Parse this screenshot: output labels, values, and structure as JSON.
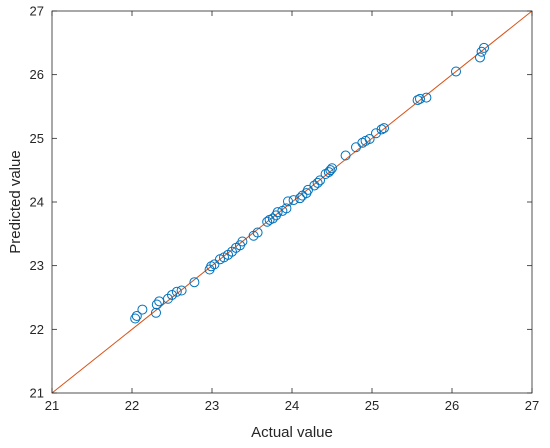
{
  "chart_data": {
    "type": "scatter",
    "title": "",
    "xlabel": "Actual value",
    "ylabel": "Predicted value",
    "xlim": [
      21,
      27
    ],
    "ylim": [
      21,
      27
    ],
    "x_ticks": [
      "21",
      "22",
      "23",
      "24",
      "25",
      "26",
      "27"
    ],
    "y_ticks": [
      "21",
      "22",
      "23",
      "24",
      "25",
      "26",
      "27"
    ],
    "grid": false,
    "legend": "none",
    "marker": "open-circle",
    "marker_color": "#0072BD",
    "reference_line": {
      "from": [
        21,
        21
      ],
      "to": [
        27,
        27
      ],
      "color": "#D95319"
    },
    "points": [
      [
        22.04,
        22.17
      ],
      [
        22.06,
        22.21
      ],
      [
        22.13,
        22.31
      ],
      [
        22.3,
        22.26
      ],
      [
        22.31,
        22.39
      ],
      [
        22.34,
        22.44
      ],
      [
        22.45,
        22.48
      ],
      [
        22.5,
        22.54
      ],
      [
        22.56,
        22.59
      ],
      [
        22.62,
        22.61
      ],
      [
        22.78,
        22.74
      ],
      [
        22.97,
        22.94
      ],
      [
        22.99,
        22.99
      ],
      [
        23.03,
        23.02
      ],
      [
        23.1,
        23.1
      ],
      [
        23.15,
        23.13
      ],
      [
        23.2,
        23.17
      ],
      [
        23.25,
        23.22
      ],
      [
        23.3,
        23.28
      ],
      [
        23.35,
        23.32
      ],
      [
        23.38,
        23.38
      ],
      [
        23.52,
        23.47
      ],
      [
        23.57,
        23.52
      ],
      [
        23.69,
        23.69
      ],
      [
        23.72,
        23.72
      ],
      [
        23.76,
        23.74
      ],
      [
        23.8,
        23.79
      ],
      [
        23.82,
        23.84
      ],
      [
        23.88,
        23.86
      ],
      [
        23.93,
        23.9
      ],
      [
        23.95,
        24.01
      ],
      [
        24.02,
        24.03
      ],
      [
        24.1,
        24.06
      ],
      [
        24.13,
        24.1
      ],
      [
        24.18,
        24.14
      ],
      [
        24.2,
        24.19
      ],
      [
        24.28,
        24.26
      ],
      [
        24.32,
        24.3
      ],
      [
        24.35,
        24.34
      ],
      [
        24.42,
        24.44
      ],
      [
        24.46,
        24.47
      ],
      [
        24.48,
        24.5
      ],
      [
        24.5,
        24.53
      ],
      [
        24.67,
        24.73
      ],
      [
        24.8,
        24.86
      ],
      [
        24.88,
        24.93
      ],
      [
        24.92,
        24.96
      ],
      [
        24.97,
        24.99
      ],
      [
        25.05,
        25.08
      ],
      [
        25.12,
        25.14
      ],
      [
        25.15,
        25.16
      ],
      [
        25.57,
        25.6
      ],
      [
        25.6,
        25.62
      ],
      [
        25.68,
        25.64
      ],
      [
        26.05,
        26.05
      ],
      [
        26.35,
        26.27
      ],
      [
        26.37,
        26.36
      ],
      [
        26.4,
        26.42
      ]
    ]
  }
}
